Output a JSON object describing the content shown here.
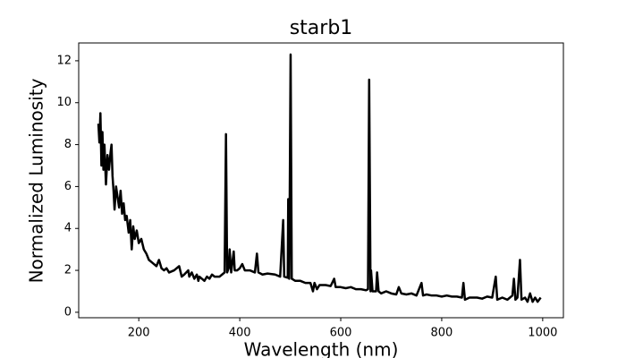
{
  "chart_data": {
    "type": "line",
    "title": "starb1",
    "x_label": "Wavelength (nm)",
    "y_label": "Normalized Luminosity",
    "x": [
      120,
      122,
      124,
      126,
      128,
      130,
      132,
      135,
      138,
      141,
      144,
      146,
      148,
      150,
      152,
      155,
      158,
      161,
      164,
      167,
      170,
      173,
      176,
      180,
      183,
      186,
      189,
      192,
      196,
      200,
      205,
      210,
      215,
      220,
      225,
      230,
      235,
      240,
      245,
      250,
      255,
      260,
      270,
      280,
      285,
      290,
      298,
      300,
      305,
      310,
      315,
      318,
      320,
      325,
      330,
      335,
      340,
      345,
      350,
      360,
      365,
      370,
      372.7,
      375,
      378,
      380,
      383,
      388,
      390,
      395,
      400,
      405,
      410,
      420,
      430,
      434,
      437,
      445,
      455,
      470,
      480,
      486,
      488,
      495,
      496,
      498,
      500.7,
      503,
      510,
      520,
      530,
      540,
      545,
      548,
      553,
      558,
      570,
      580,
      587,
      590,
      600,
      610,
      620,
      630,
      640,
      650,
      654,
      656.3,
      659,
      660,
      663,
      670,
      672,
      675,
      680,
      690,
      700,
      710,
      715,
      720,
      730,
      740,
      750,
      760,
      763,
      770,
      780,
      790,
      800,
      810,
      820,
      830,
      840,
      843,
      846,
      855,
      870,
      880,
      890,
      900,
      907,
      910,
      920,
      930,
      940,
      943,
      946,
      950,
      955,
      958,
      965,
      970,
      975,
      980,
      985,
      990,
      996
    ],
    "series": [
      {
        "name": "starb1",
        "color": "#000000",
        "values": [
          9.0,
          8.1,
          9.5,
          7.0,
          8.6,
          6.8,
          8.0,
          6.1,
          7.5,
          6.8,
          7.6,
          8.0,
          6.5,
          5.8,
          4.9,
          6.0,
          5.5,
          5.0,
          5.8,
          4.7,
          5.2,
          4.4,
          4.6,
          3.8,
          4.4,
          3.0,
          4.1,
          3.5,
          3.9,
          3.3,
          3.5,
          3.0,
          2.8,
          2.5,
          2.4,
          2.3,
          2.2,
          2.5,
          2.1,
          2.0,
          2.1,
          1.9,
          2.0,
          2.2,
          1.7,
          1.8,
          2.0,
          1.7,
          1.9,
          1.6,
          1.8,
          1.5,
          1.7,
          1.6,
          1.5,
          1.7,
          1.6,
          1.8,
          1.7,
          1.7,
          1.8,
          1.9,
          8.5,
          1.9,
          2.1,
          3.0,
          1.9,
          2.9,
          2.0,
          2.0,
          2.1,
          2.3,
          2.0,
          2.0,
          1.9,
          2.8,
          1.9,
          1.8,
          1.85,
          1.8,
          1.7,
          4.4,
          1.7,
          1.65,
          5.4,
          1.6,
          12.3,
          1.6,
          1.5,
          1.5,
          1.4,
          1.4,
          1.0,
          1.4,
          1.1,
          1.3,
          1.3,
          1.25,
          1.6,
          1.2,
          1.2,
          1.15,
          1.2,
          1.1,
          1.1,
          1.05,
          1.1,
          11.1,
          1.0,
          2.0,
          1.0,
          1.0,
          1.9,
          1.0,
          0.9,
          1.0,
          0.9,
          0.85,
          1.2,
          0.9,
          0.85,
          0.9,
          0.8,
          1.4,
          0.8,
          0.85,
          0.8,
          0.8,
          0.75,
          0.8,
          0.75,
          0.75,
          0.7,
          1.4,
          0.6,
          0.7,
          0.7,
          0.65,
          0.75,
          0.7,
          1.7,
          0.6,
          0.7,
          0.6,
          0.8,
          1.6,
          0.6,
          0.7,
          2.5,
          0.6,
          0.7,
          0.5,
          0.9,
          0.5,
          0.7,
          0.5,
          0.7
        ]
      }
    ],
    "xlim": [
      81,
      1041
    ],
    "ylim": [
      -0.26,
      12.85
    ],
    "xticks": [
      200,
      400,
      600,
      800,
      1000
    ],
    "yticks": [
      0,
      2,
      4,
      6,
      8,
      10,
      12
    ],
    "grid": false
  }
}
